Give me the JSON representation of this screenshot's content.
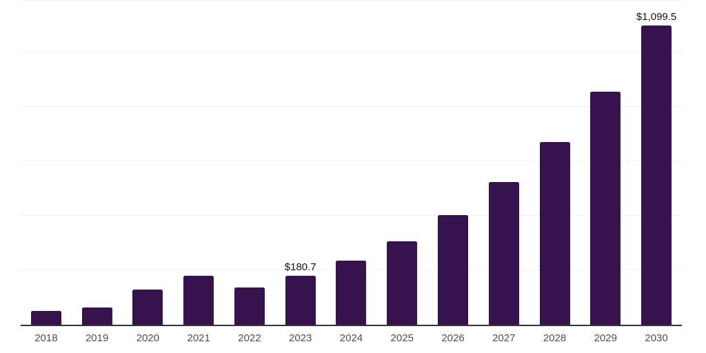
{
  "chart_data": {
    "type": "bar",
    "title": "",
    "categories": [
      "2018",
      "2019",
      "2020",
      "2021",
      "2022",
      "2023",
      "2024",
      "2025",
      "2026",
      "2027",
      "2028",
      "2029",
      "2030"
    ],
    "values": [
      50.2,
      63.7,
      130.1,
      180.2,
      137.7,
      180.7,
      236.3,
      307.0,
      401.5,
      524.4,
      672.0,
      855.4,
      1099.5
    ],
    "data_labels": {
      "2023": "$180.7",
      "2030": "$1,099.5"
    },
    "xlabel": "",
    "ylabel": "",
    "ylim": [
      0,
      1190
    ],
    "gridline_values": [
      200,
      400,
      600,
      800,
      1000
    ],
    "grid": "horizontal-only",
    "legend": "none",
    "y_axis_tick_labels": "none",
    "colors": {
      "bar": "#36124e",
      "axis_line": "#333333",
      "gridline": "#f2f2f2",
      "tick_label": "#4d4d4d",
      "data_label": "#111111",
      "background": "#ffffff"
    }
  }
}
